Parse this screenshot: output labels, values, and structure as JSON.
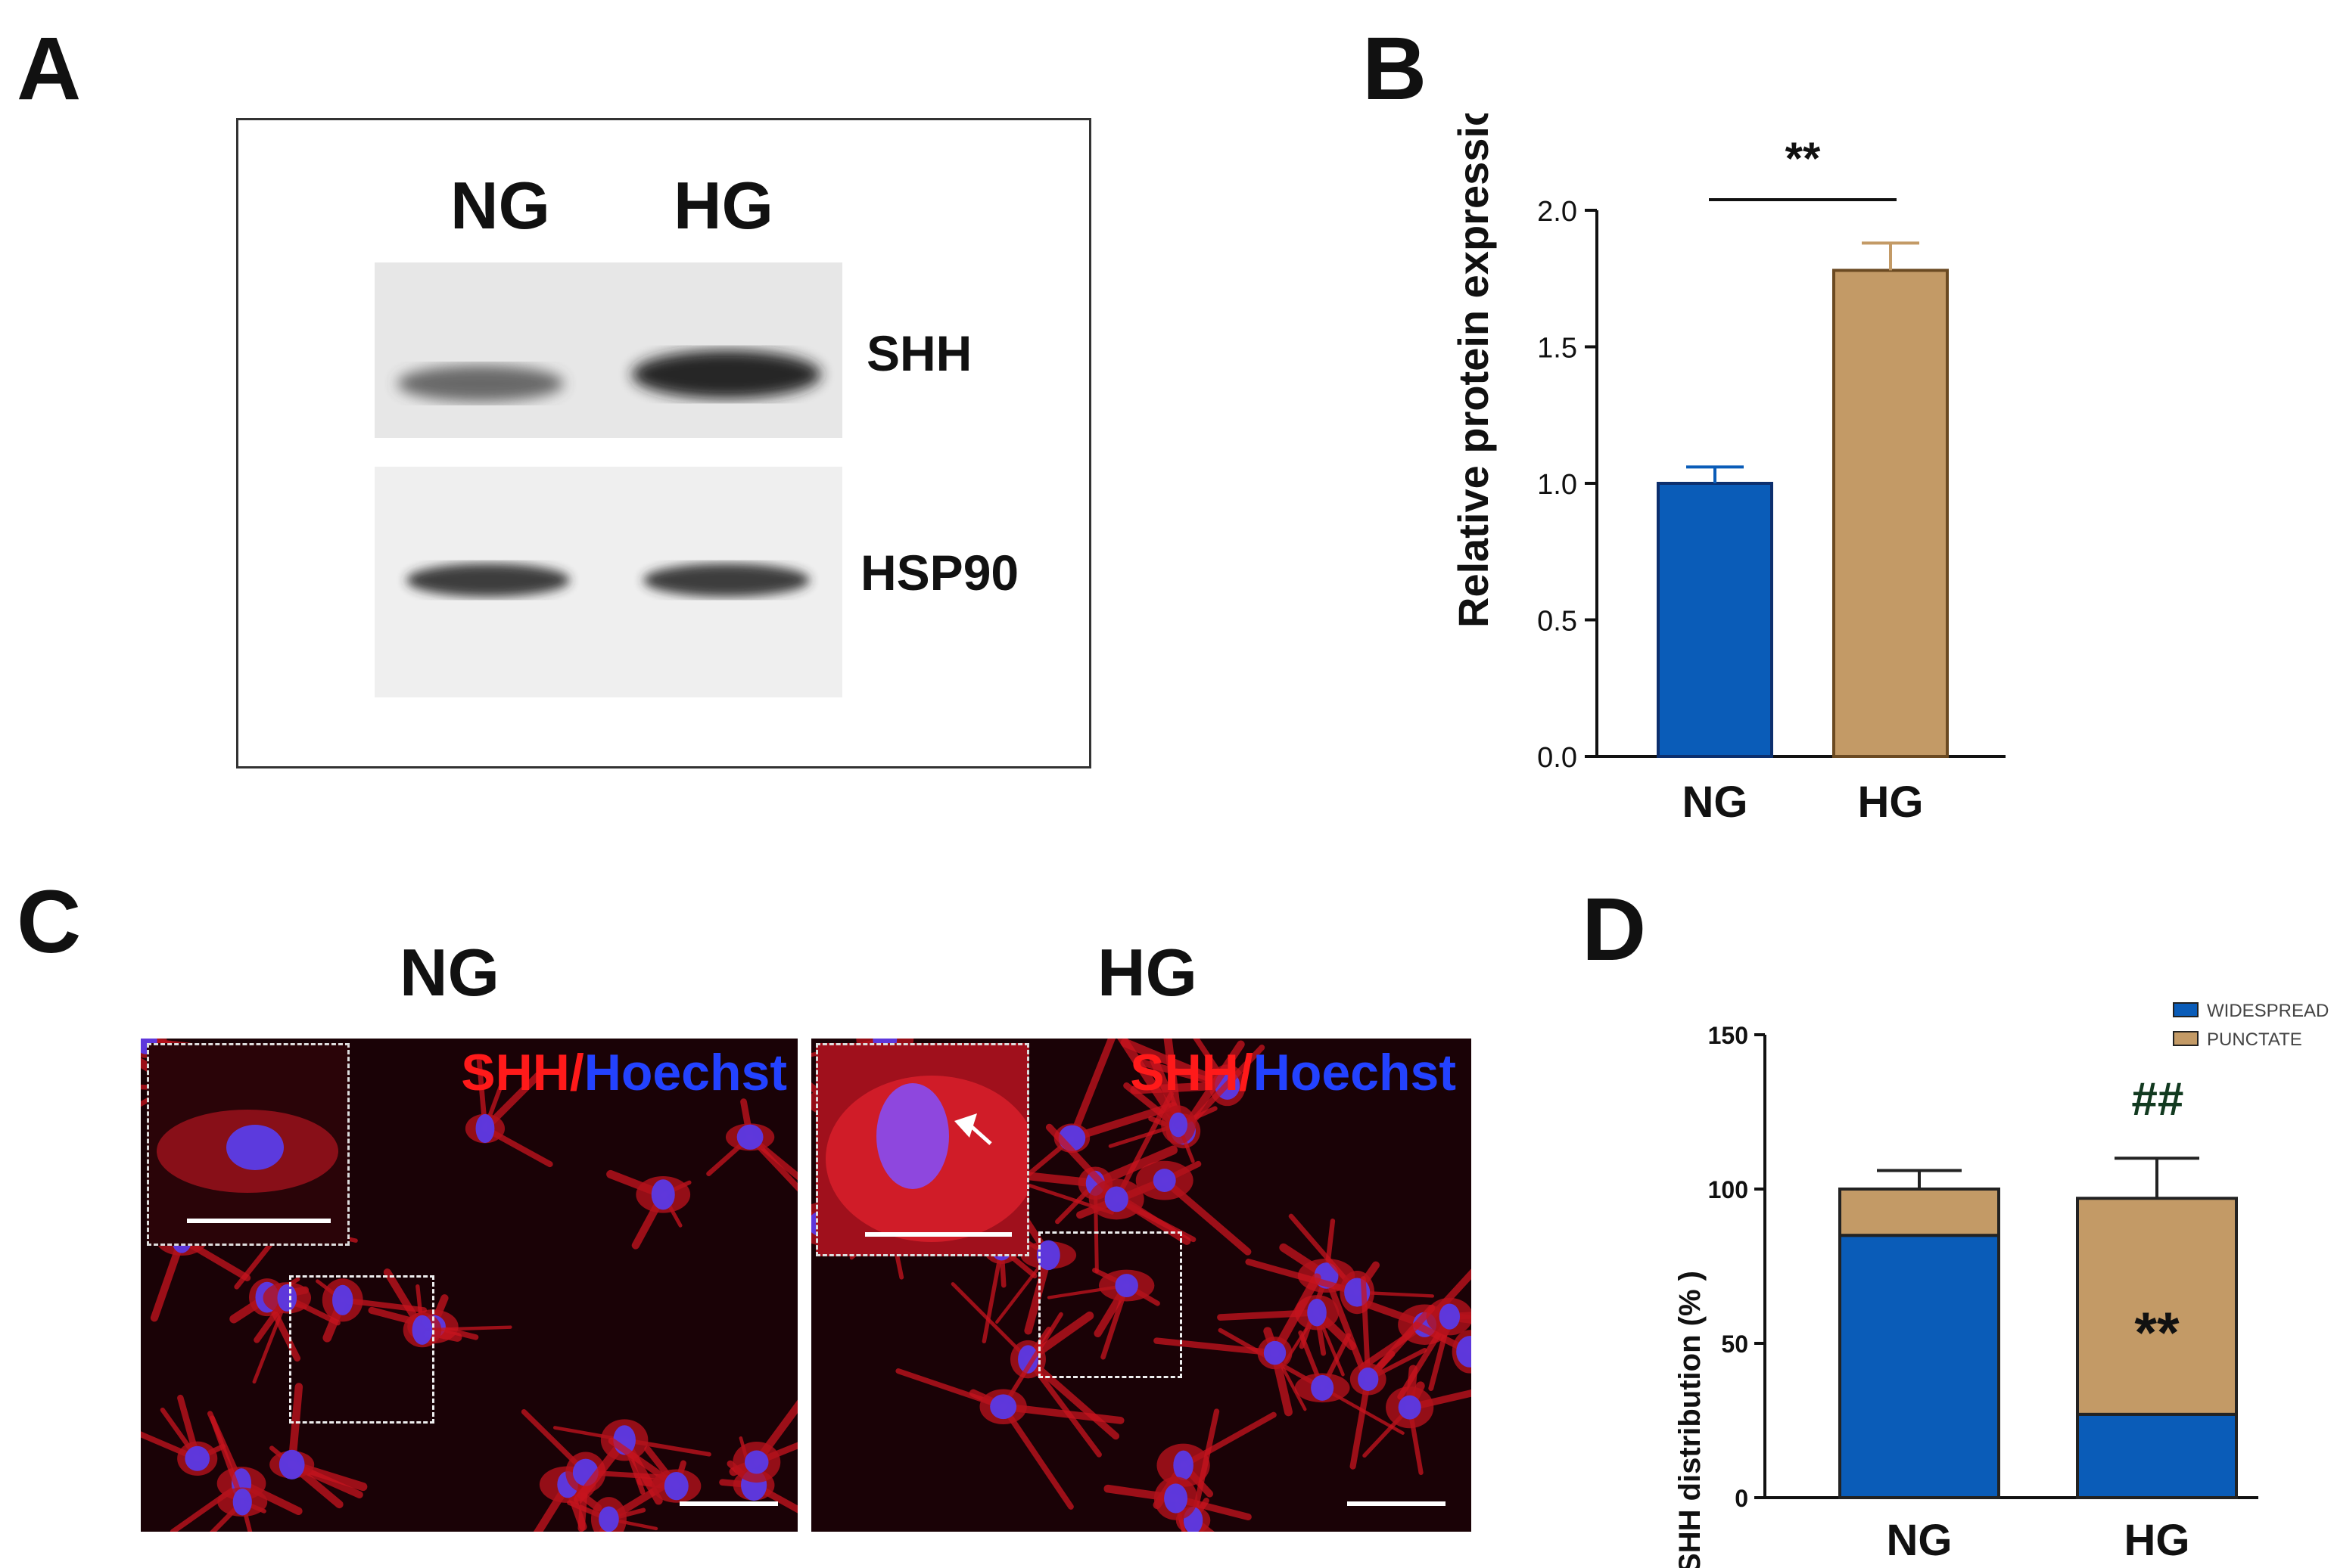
{
  "panels": {
    "A": {
      "letter": "A",
      "lanes": [
        "NG",
        "HG"
      ],
      "bands": [
        "SHH",
        "HSP90"
      ]
    },
    "B": {
      "letter": "B",
      "significance": "**"
    },
    "C": {
      "letter": "C",
      "conditions": [
        "NG",
        "HG"
      ],
      "stain_primary": "SHH",
      "stain_separator": "/",
      "stain_secondary": "Hoechst",
      "colors": {
        "primary": "#ff1a1a",
        "secondary": "#1f3dff"
      }
    },
    "D": {
      "letter": "D",
      "significance_hash": "##",
      "significance_star": "**"
    }
  },
  "chart_data": [
    {
      "type": "bar",
      "panel": "B",
      "categories": [
        "NG",
        "HG"
      ],
      "values": [
        1.0,
        1.78
      ],
      "errors": [
        0.06,
        0.1
      ],
      "ylabel": "Relative protein expression",
      "ylim": [
        0,
        2.0
      ],
      "yticks": [
        "0.0",
        "0.5",
        "1.0",
        "1.5",
        "2.0"
      ],
      "colors": [
        "#0a5cb8",
        "#c39a66"
      ],
      "significance": "**"
    },
    {
      "type": "bar",
      "stacked": true,
      "panel": "D",
      "categories": [
        "NG",
        "HG"
      ],
      "series": [
        {
          "name": "WIDESPREAD",
          "values": [
            85,
            27
          ],
          "errors": [
            6,
            12
          ],
          "color": "#0a5cb8"
        },
        {
          "name": "PUNCTATE",
          "values": [
            15,
            70
          ],
          "errors": [
            6,
            13
          ],
          "color": "#c39a66"
        }
      ],
      "ylabel": "SHH distribution (% )",
      "ylim": [
        0,
        150
      ],
      "yticks": [
        "0",
        "50",
        "100",
        "150"
      ],
      "legend": "top-right"
    }
  ]
}
